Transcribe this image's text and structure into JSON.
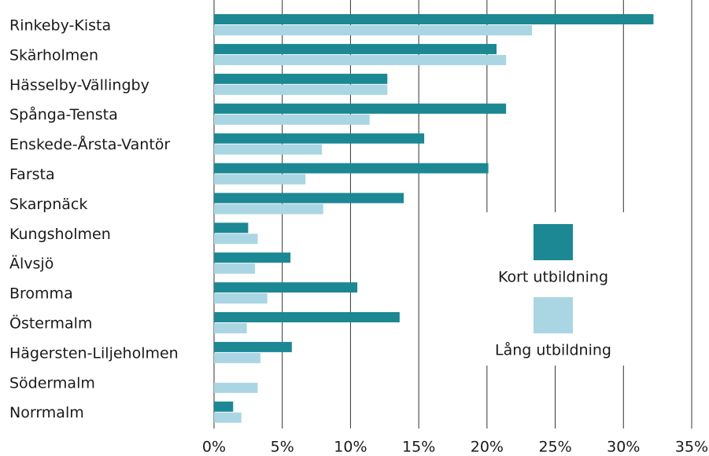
{
  "chart_data": {
    "type": "hbar",
    "categories": [
      "Rinkeby-Kista",
      "Skärholmen",
      "Hässelby-Vällingby",
      "Spånga-Tensta",
      "Enskede-Årsta-Vantör",
      "Farsta",
      "Skarpnäck",
      "Kungsholmen",
      "Älvsjö",
      "Bromma",
      "Östermalm",
      "Hägersten-Liljeholmen",
      "Södermalm",
      "Norrmalm"
    ],
    "series": [
      {
        "name": "Kort utbildning",
        "color": "#1b8894",
        "values": [
          32.2,
          20.7,
          12.7,
          21.4,
          15.4,
          20.1,
          13.9,
          2.5,
          5.6,
          10.5,
          13.6,
          5.7,
          0,
          1.4
        ]
      },
      {
        "name": "Lång utbildning",
        "color": "#a9d6e2",
        "values": [
          23.3,
          21.4,
          12.7,
          11.4,
          7.9,
          6.7,
          8.0,
          3.2,
          3.0,
          3.9,
          2.4,
          3.4,
          3.2,
          2.0
        ]
      }
    ],
    "xlim": [
      0,
      35
    ],
    "xticks": [
      {
        "value": 0,
        "label": "0%"
      },
      {
        "value": 5,
        "label": "5%"
      },
      {
        "value": 10,
        "label": "10%"
      },
      {
        "value": 15,
        "label": "15%"
      },
      {
        "value": 20,
        "label": "20%"
      },
      {
        "value": 25,
        "label": "25%"
      },
      {
        "value": 30,
        "label": "30%"
      },
      {
        "value": 35,
        "label": "35%"
      }
    ],
    "grid": true
  }
}
